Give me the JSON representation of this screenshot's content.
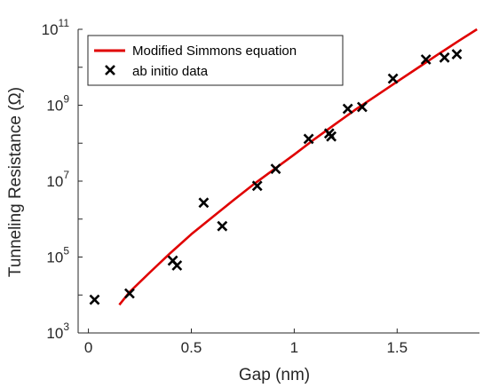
{
  "chart_data": {
    "type": "scatter",
    "xlabel": "Gap (nm)",
    "ylabel": "Tunneling Resistance (Ω)",
    "xlim": [
      -0.05,
      1.9
    ],
    "xticks": [
      0,
      0.5,
      1,
      1.5
    ],
    "xtick_labels": [
      "0",
      "0.5",
      "1",
      "1.5"
    ],
    "ylim_log10": [
      3,
      11
    ],
    "yscale": "log",
    "yticks": [
      {
        "base": "10",
        "exp": "3",
        "value": 1000
      },
      {
        "base": "10",
        "exp": "5",
        "value": 100000
      },
      {
        "base": "10",
        "exp": "7",
        "value": 10000000
      },
      {
        "base": "10",
        "exp": "9",
        "value": 1000000000
      },
      {
        "base": "10",
        "exp": "11",
        "value": 100000000000
      }
    ],
    "legend_position": "top-left",
    "series": [
      {
        "name": "Modified Simmons equation",
        "kind": "line",
        "color": "#e00000",
        "x": [
          0.15,
          0.2,
          0.3,
          0.4,
          0.5,
          0.6,
          0.7,
          0.8,
          0.9,
          1.0,
          1.1,
          1.2,
          1.3,
          1.4,
          1.5,
          1.6,
          1.7,
          1.8,
          1.9
        ],
        "y": [
          5500,
          12000,
          40000,
          130000,
          400000,
          1100000,
          3000000,
          8000000,
          20000000,
          50000000,
          130000000,
          320000000,
          780000000,
          1800000000,
          4200000000,
          9600000000,
          22000000000,
          50000000000,
          110000000000
        ]
      },
      {
        "name": "ab initio data",
        "kind": "scatter",
        "color": "#000000",
        "x": [
          0.03,
          0.2,
          0.41,
          0.43,
          0.56,
          0.65,
          0.82,
          0.91,
          1.07,
          1.17,
          1.18,
          1.26,
          1.33,
          1.48,
          1.64,
          1.73,
          1.79
        ],
        "y": [
          7500,
          11000,
          80000,
          60000,
          2700000,
          650000,
          7500000,
          21000000,
          130000000,
          180000000,
          150000000,
          800000000,
          900000000,
          5000000000,
          16000000000,
          18000000000,
          22000000000
        ]
      }
    ]
  }
}
